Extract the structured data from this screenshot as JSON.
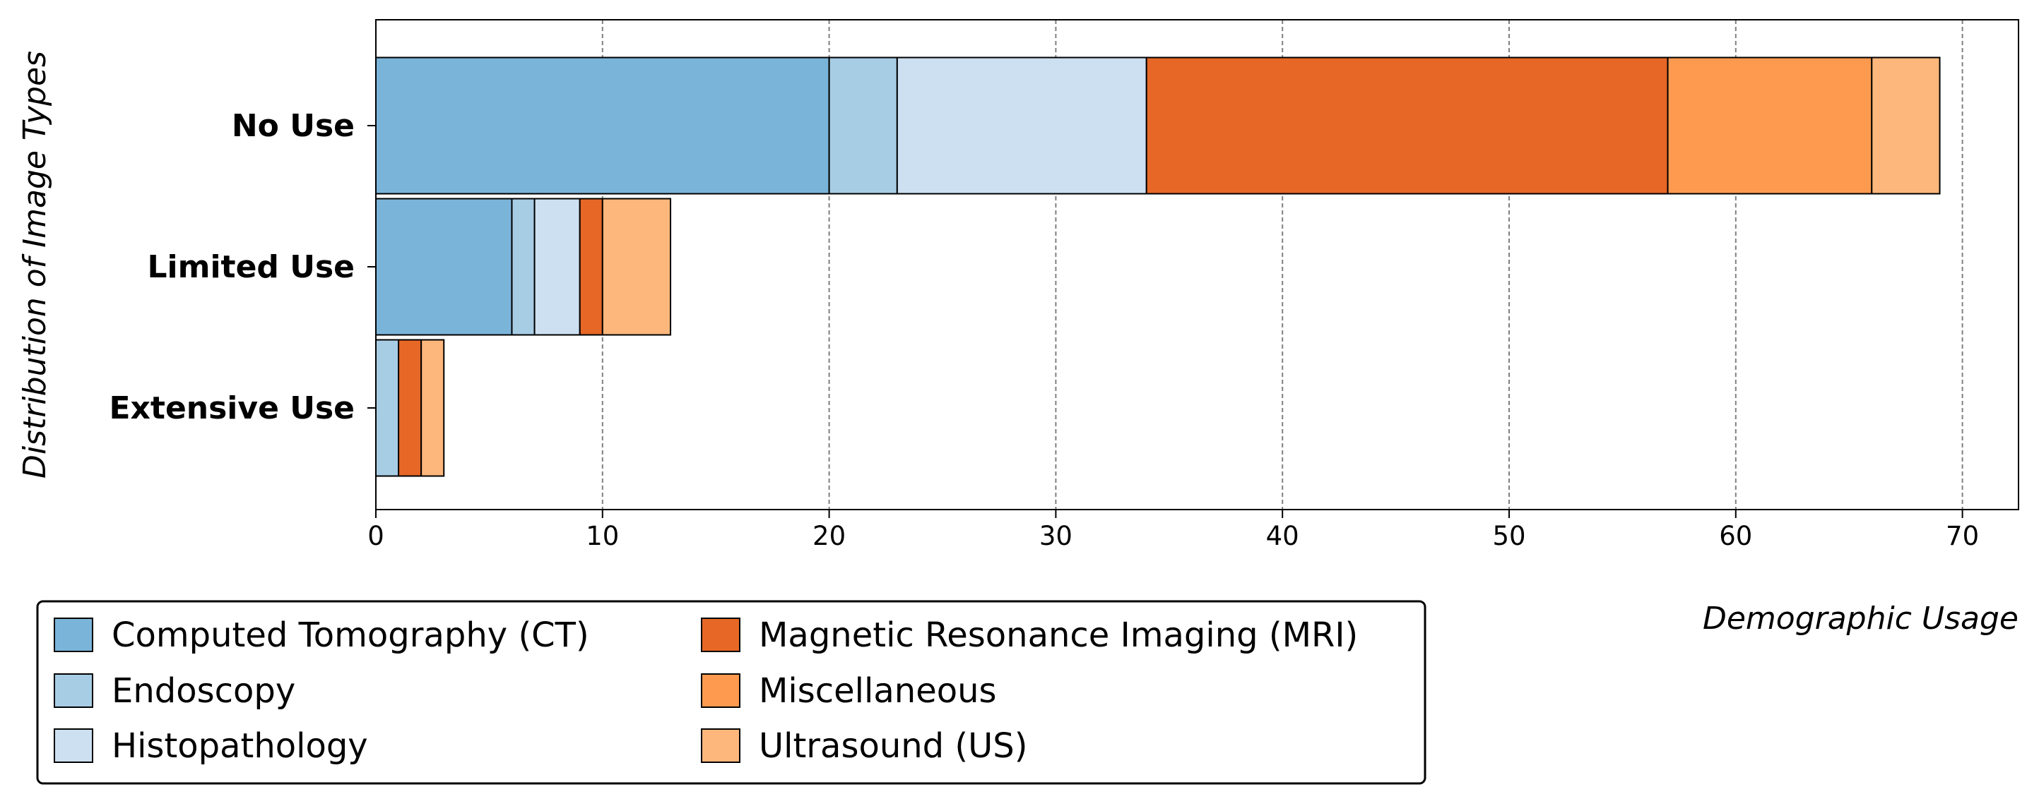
{
  "chart_data": {
    "type": "bar",
    "orientation": "horizontal",
    "stacked": true,
    "categories": [
      "No Use",
      "Limited Use",
      "Extensive Use"
    ],
    "series": [
      {
        "name": "Computed Tomography (CT)",
        "color": "#7bb4d9",
        "values": [
          20,
          6,
          0
        ]
      },
      {
        "name": "Endoscopy",
        "color": "#a7cde4",
        "values": [
          3,
          1,
          1
        ]
      },
      {
        "name": "Histopathology",
        "color": "#cde0f1",
        "values": [
          11,
          2,
          0
        ]
      },
      {
        "name": "Magnetic Resonance Imaging (MRI)",
        "color": "#e66726",
        "values": [
          23,
          1,
          1
        ]
      },
      {
        "name": "Miscellaneous",
        "color": "#fd9a4f",
        "values": [
          9,
          0,
          0
        ]
      },
      {
        "name": "Ultrasound (US)",
        "color": "#fdb77c",
        "values": [
          3,
          3,
          1
        ]
      }
    ],
    "xlabel": "Demographic Usage",
    "ylabel": "Distribution of Image Types",
    "xlim": [
      0,
      72.5
    ],
    "xticks": [
      "0",
      "10",
      "20",
      "30",
      "40",
      "50",
      "60",
      "70"
    ],
    "grid": "vertical dashed",
    "legend": "bottom-left, two columns"
  }
}
